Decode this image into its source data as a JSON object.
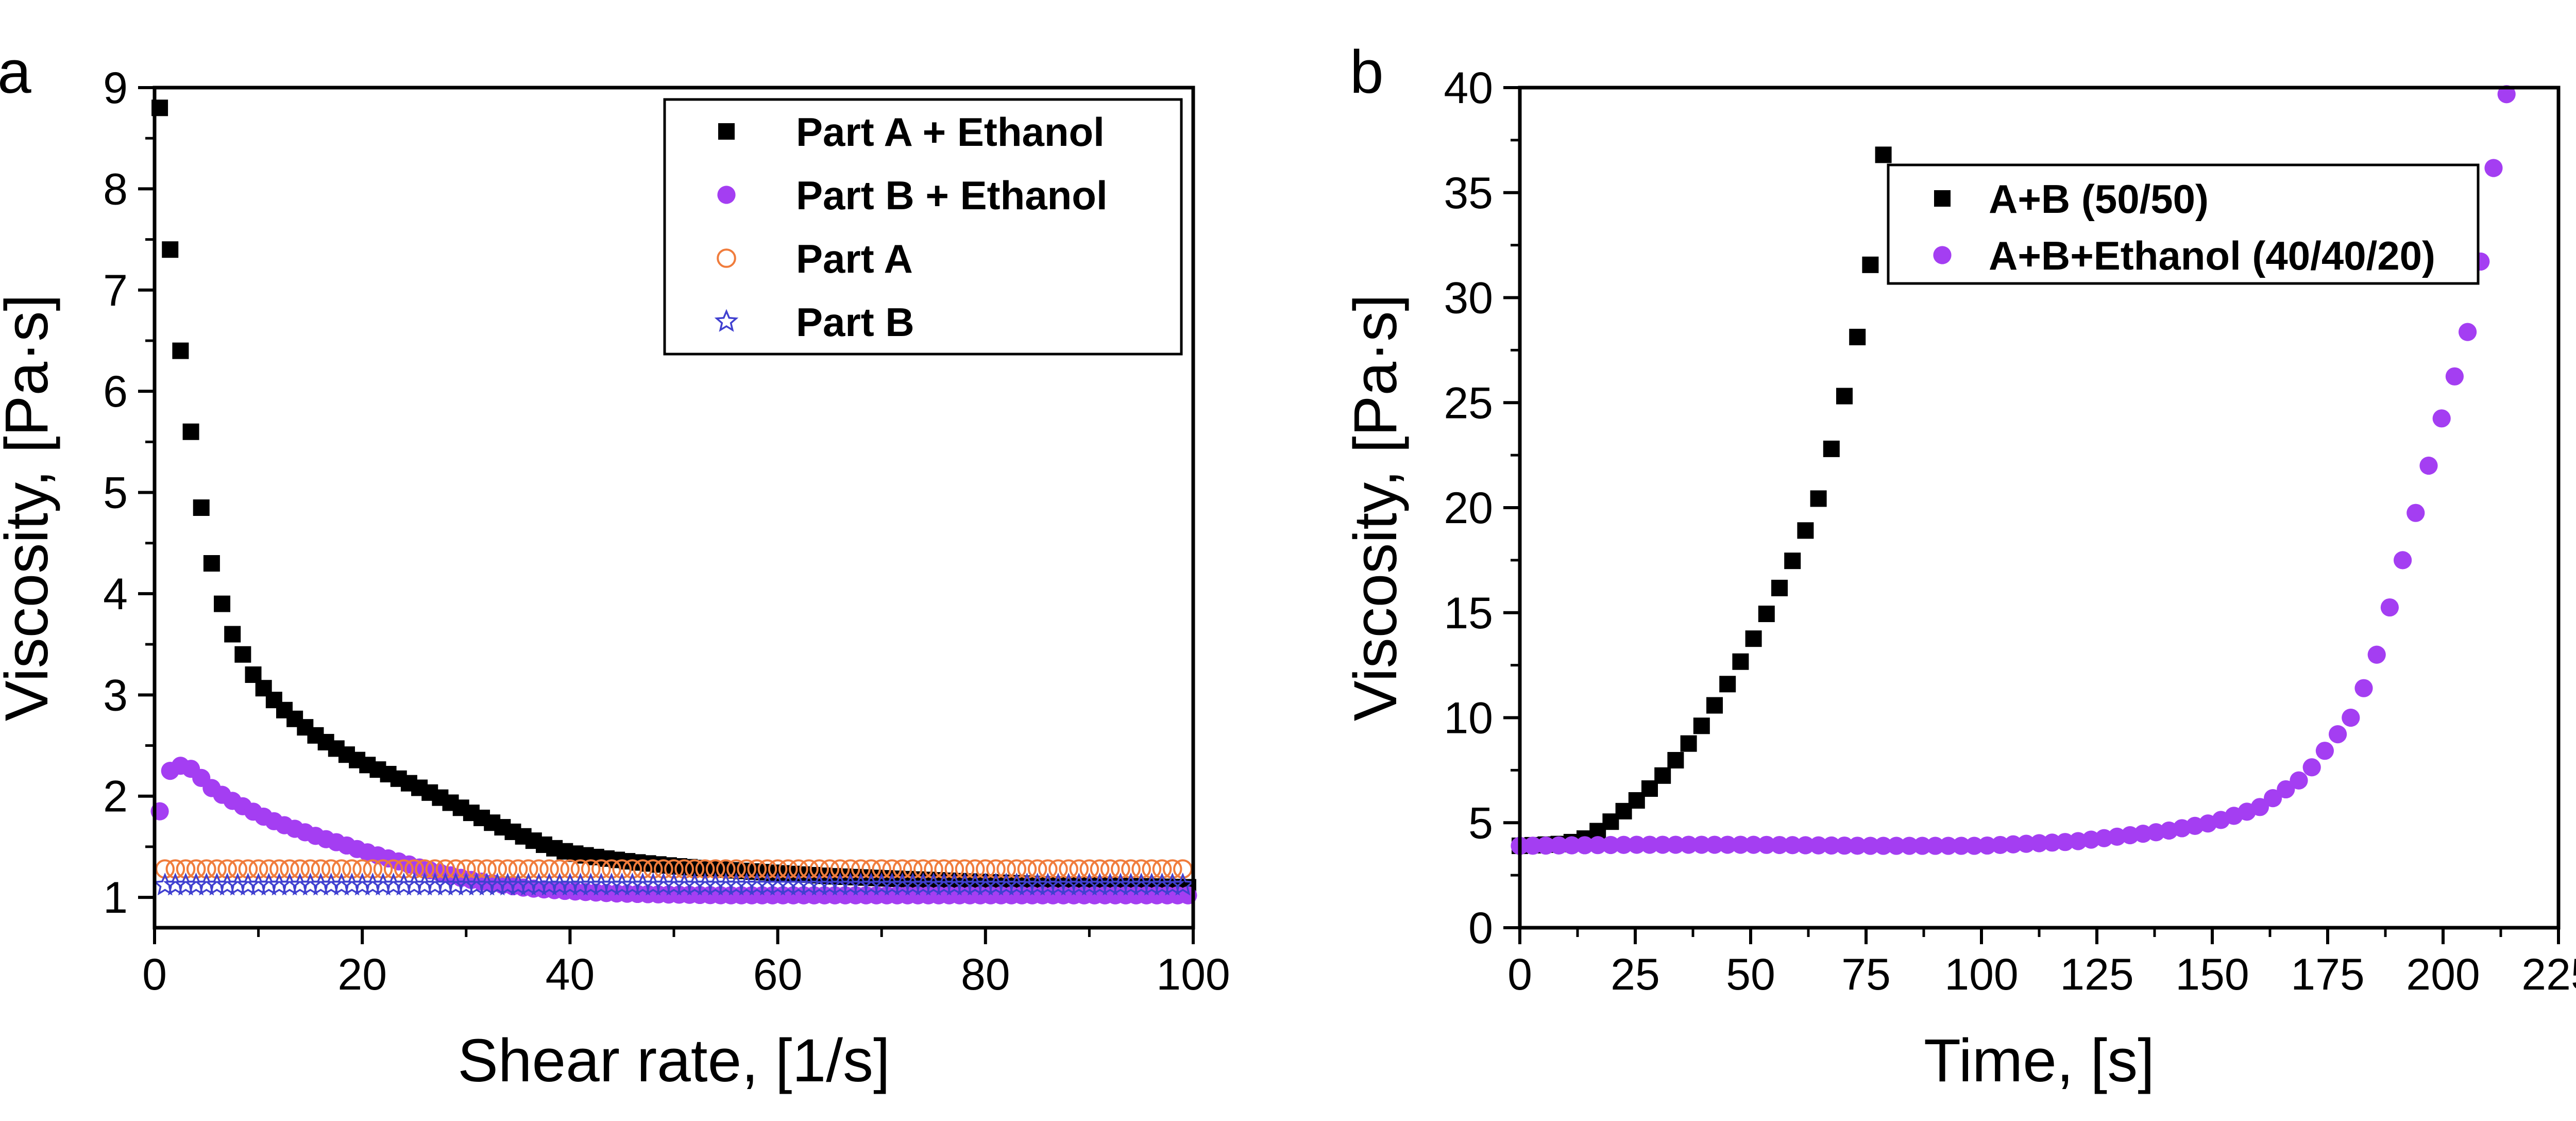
{
  "chart_data": [
    {
      "type": "scatter",
      "panel_label": "a",
      "xlabel": "Shear rate, [1/s]",
      "ylabel": "Viscosity, [Pa·s]",
      "xlim": [
        0,
        100
      ],
      "ylim": [
        0.7,
        9
      ],
      "xticks": [
        "0",
        "20",
        "40",
        "60",
        "80",
        "100"
      ],
      "yticks": [
        "1",
        "2",
        "3",
        "4",
        "5",
        "6",
        "7",
        "8",
        "9"
      ],
      "legend_position": "top-right",
      "series": [
        {
          "name": "Part A + Ethanol",
          "marker": "square",
          "color": "#000000",
          "points": [
            [
              0.5,
              8.8
            ],
            [
              1.5,
              7.4
            ],
            [
              2.5,
              6.4
            ],
            [
              3.5,
              5.6
            ],
            [
              4.5,
              4.85
            ],
            [
              5.5,
              4.3
            ],
            [
              6.5,
              3.9
            ],
            [
              7.5,
              3.6
            ],
            [
              8.5,
              3.4
            ],
            [
              9.5,
              3.2
            ],
            [
              11,
              3.0
            ],
            [
              12.5,
              2.85
            ],
            [
              14,
              2.72
            ],
            [
              15.5,
              2.6
            ],
            [
              17,
              2.5
            ],
            [
              18.5,
              2.41
            ],
            [
              20,
              2.33
            ],
            [
              22,
              2.24
            ],
            [
              24,
              2.15
            ],
            [
              26,
              2.06
            ],
            [
              28,
              1.96
            ],
            [
              30,
              1.86
            ],
            [
              32,
              1.76
            ],
            [
              34,
              1.67
            ],
            [
              36,
              1.58
            ],
            [
              38,
              1.5
            ],
            [
              40,
              1.44
            ],
            [
              43,
              1.39
            ],
            [
              46,
              1.35
            ],
            [
              50,
              1.31
            ],
            [
              55,
              1.27
            ],
            [
              60,
              1.24
            ],
            [
              65,
              1.21
            ],
            [
              70,
              1.19
            ],
            [
              75,
              1.17
            ],
            [
              80,
              1.15
            ],
            [
              85,
              1.13
            ],
            [
              90,
              1.12
            ],
            [
              95,
              1.11
            ],
            [
              99.5,
              1.1
            ]
          ]
        },
        {
          "name": "Part B + Ethanol",
          "marker": "circle",
          "color": "#a43ef2",
          "points": [
            [
              0.5,
              1.85
            ],
            [
              1.5,
              2.25
            ],
            [
              2.5,
              2.3
            ],
            [
              3.5,
              2.27
            ],
            [
              4.5,
              2.18
            ],
            [
              5.5,
              2.08
            ],
            [
              7,
              1.98
            ],
            [
              8.5,
              1.9
            ],
            [
              10,
              1.82
            ],
            [
              12,
              1.73
            ],
            [
              14,
              1.66
            ],
            [
              16,
              1.59
            ],
            [
              18,
              1.53
            ],
            [
              20,
              1.46
            ],
            [
              22,
              1.4
            ],
            [
              24,
              1.34
            ],
            [
              26,
              1.28
            ],
            [
              28,
              1.23
            ],
            [
              30,
              1.18
            ],
            [
              33,
              1.13
            ],
            [
              36,
              1.09
            ],
            [
              40,
              1.06
            ],
            [
              44,
              1.04
            ],
            [
              48,
              1.03
            ],
            [
              55,
              1.02
            ],
            [
              60,
              1.02
            ],
            [
              70,
              1.02
            ],
            [
              80,
              1.02
            ],
            [
              90,
              1.02
            ],
            [
              99.5,
              1.02
            ]
          ]
        },
        {
          "name": "Part A",
          "marker": "open-circle",
          "color": "#f07c3c",
          "points": [
            [
              1,
              1.28
            ],
            [
              10,
              1.28
            ],
            [
              20,
              1.28
            ],
            [
              30,
              1.28
            ],
            [
              40,
              1.28
            ],
            [
              50,
              1.28
            ],
            [
              60,
              1.28
            ],
            [
              70,
              1.28
            ],
            [
              80,
              1.28
            ],
            [
              90,
              1.28
            ],
            [
              99.5,
              1.28
            ]
          ]
        },
        {
          "name": "Part B",
          "marker": "open-star",
          "color": "#4040d0",
          "points": [
            [
              1,
              1.12
            ],
            [
              10,
              1.12
            ],
            [
              20,
              1.12
            ],
            [
              30,
              1.12
            ],
            [
              40,
              1.12
            ],
            [
              50,
              1.12
            ],
            [
              60,
              1.12
            ],
            [
              70,
              1.12
            ],
            [
              80,
              1.12
            ],
            [
              90,
              1.12
            ],
            [
              99.5,
              1.12
            ]
          ]
        }
      ]
    },
    {
      "type": "scatter",
      "panel_label": "b",
      "xlabel": "Time, [s]",
      "ylabel": "Viscosity, [Pa·s]",
      "xlim": [
        0,
        225
      ],
      "ylim": [
        0,
        40
      ],
      "xticks": [
        "0",
        "25",
        "50",
        "75",
        "100",
        "125",
        "150",
        "175",
        "200",
        "225"
      ],
      "yticks": [
        "0",
        "5",
        "10",
        "15",
        "20",
        "25",
        "30",
        "35",
        "40"
      ],
      "legend_position": "top-center",
      "series": [
        {
          "name": "A+B (50/50)",
          "marker": "square",
          "color": "#000000",
          "points": [
            [
              0,
              3.9
            ],
            [
              5,
              3.95
            ],
            [
              10,
              4.0
            ],
            [
              15,
              4.3
            ],
            [
              20,
              5.1
            ],
            [
              25,
              6.0
            ],
            [
              30,
              7.0
            ],
            [
              35,
              8.3
            ],
            [
              40,
              9.8
            ],
            [
              45,
              11.6
            ],
            [
              50,
              13.5
            ],
            [
              55,
              15.6
            ],
            [
              60,
              17.9
            ],
            [
              65,
              20.6
            ],
            [
              70,
              25.0
            ],
            [
              75,
              30.0
            ],
            [
              78,
              35.0
            ],
            [
              80,
              39.8
            ]
          ]
        },
        {
          "name": "A+B+Ethanol (40/40/20)",
          "marker": "circle",
          "color": "#a43ef2",
          "points": [
            [
              0,
              3.9
            ],
            [
              25,
              3.95
            ],
            [
              50,
              3.95
            ],
            [
              75,
              3.9
            ],
            [
              100,
              3.9
            ],
            [
              120,
              4.1
            ],
            [
              140,
              4.6
            ],
            [
              150,
              5.0
            ],
            [
              160,
              5.7
            ],
            [
              170,
              7.2
            ],
            [
              180,
              10.0
            ],
            [
              185,
              12.5
            ],
            [
              190,
              16.5
            ],
            [
              195,
              20.5
            ],
            [
              200,
              24.5
            ],
            [
              205,
              28.0
            ],
            [
              208,
              31.5
            ],
            [
              210,
              35.0
            ],
            [
              212,
              37.5
            ],
            [
              214,
              40.0
            ]
          ]
        }
      ]
    }
  ]
}
